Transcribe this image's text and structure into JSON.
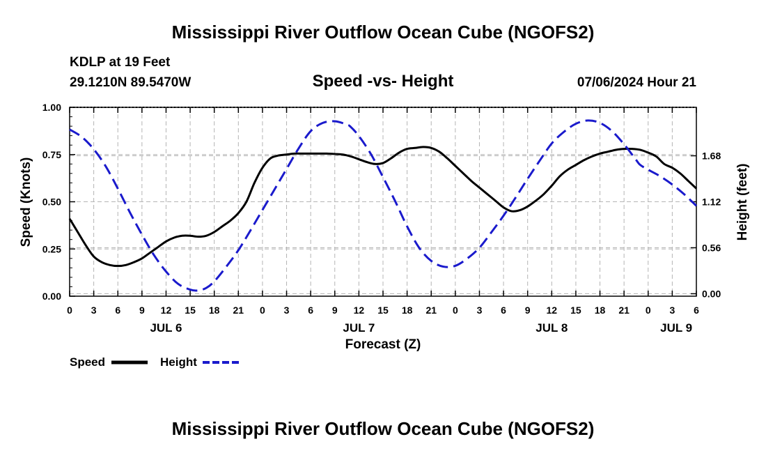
{
  "header": {
    "title": "Mississippi River Outflow Ocean Cube (NGOFS2)",
    "station": "KDLP at 19 Feet",
    "coords": "29.1210N  89.5470W",
    "subtitle": "Speed -vs- Height",
    "datetime": "07/06/2024 Hour 21",
    "footer_title": "Mississippi River Outflow Ocean Cube (NGOFS2)"
  },
  "colors": {
    "speed": "#000000",
    "height": "#1a1acc",
    "grid": "#b4b4b4"
  },
  "chart_data": {
    "type": "line",
    "title": "Speed -vs- Height",
    "xlabel": "Forecast (Z)",
    "ylabel": "Speed (Knots)",
    "y2label": "Height (feet)",
    "x_unit": "forecast hour (0 = 07/06 00Z)",
    "xlim": [
      0,
      78
    ],
    "ylim": [
      0,
      1.0
    ],
    "y2lim": [
      -0.03,
      2.27
    ],
    "x_ticks": [
      0,
      3,
      6,
      9,
      12,
      15,
      18,
      21,
      24,
      27,
      30,
      33,
      36,
      39,
      42,
      45,
      48,
      51,
      54,
      57,
      60,
      63,
      66,
      69,
      72,
      75,
      78
    ],
    "x_tick_labels": [
      "0",
      "3",
      "6",
      "9",
      "12",
      "15",
      "18",
      "21",
      "0",
      "3",
      "6",
      "9",
      "12",
      "15",
      "18",
      "21",
      "0",
      "3",
      "6",
      "9",
      "12",
      "15",
      "18",
      "21",
      "0",
      "3",
      "6"
    ],
    "day_labels": [
      {
        "label": "JUL 6",
        "x": 12
      },
      {
        "label": "JUL 7",
        "x": 36
      },
      {
        "label": "JUL 8",
        "x": 60
      },
      {
        "label": "JUL 9",
        "x": 75.5
      }
    ],
    "y_ticks": [
      0.0,
      0.25,
      0.5,
      0.75,
      1.0
    ],
    "y_tick_labels": [
      "0.00",
      "0.25",
      "0.50",
      "0.75",
      "1.00"
    ],
    "y2_ticks": [
      0.0,
      0.56,
      1.12,
      1.68
    ],
    "y2_tick_labels": [
      "0.00",
      "0.56",
      "1.12",
      "1.68"
    ],
    "series": [
      {
        "name": "Speed",
        "axis": "left",
        "style": "solid",
        "x": [
          0,
          1,
          2,
          3,
          4,
          5,
          6,
          7,
          8,
          9,
          10,
          11,
          12,
          13,
          14,
          15,
          16,
          17,
          18,
          19,
          20,
          21,
          22,
          23,
          24,
          25,
          26,
          27,
          28,
          29,
          30,
          31,
          32,
          33,
          34,
          35,
          36,
          37,
          38,
          39,
          40,
          41,
          42,
          43,
          44,
          45,
          46,
          47,
          48,
          49,
          50,
          51,
          52,
          53,
          54,
          55,
          56,
          57,
          58,
          59,
          60,
          61,
          62,
          63,
          64,
          65,
          66,
          67,
          68,
          69,
          70,
          71,
          72,
          73,
          74,
          75,
          76,
          77,
          78
        ],
        "values": [
          0.41,
          0.34,
          0.27,
          0.21,
          0.18,
          0.165,
          0.16,
          0.165,
          0.18,
          0.2,
          0.23,
          0.26,
          0.29,
          0.31,
          0.32,
          0.32,
          0.315,
          0.32,
          0.34,
          0.37,
          0.4,
          0.44,
          0.5,
          0.6,
          0.68,
          0.73,
          0.745,
          0.75,
          0.755,
          0.755,
          0.755,
          0.755,
          0.755,
          0.753,
          0.75,
          0.74,
          0.725,
          0.71,
          0.7,
          0.705,
          0.73,
          0.76,
          0.78,
          0.785,
          0.79,
          0.785,
          0.765,
          0.73,
          0.69,
          0.65,
          0.61,
          0.575,
          0.54,
          0.505,
          0.47,
          0.45,
          0.455,
          0.475,
          0.505,
          0.54,
          0.585,
          0.635,
          0.67,
          0.695,
          0.72,
          0.74,
          0.755,
          0.765,
          0.775,
          0.78,
          0.78,
          0.775,
          0.76,
          0.74,
          0.7,
          0.68,
          0.65,
          0.61,
          0.57
        ]
      },
      {
        "name": "Height",
        "axis": "right",
        "style": "dashed",
        "x": [
          0,
          1.5,
          3,
          4.5,
          6,
          7.5,
          9,
          10.5,
          12,
          13.5,
          15,
          16,
          17,
          18,
          19.5,
          21,
          22.5,
          24,
          25.5,
          27,
          28.5,
          30,
          31.5,
          33,
          34.5,
          35,
          36,
          37.5,
          39,
          40.5,
          42,
          43.5,
          45,
          46.5,
          48,
          49.5,
          51,
          52.5,
          54,
          55.5,
          57,
          58.5,
          60,
          61.5,
          63,
          64.5,
          66,
          67.5,
          69,
          70.5,
          71,
          72,
          73.5,
          75,
          76.5,
          78
        ],
        "values": [
          2.0,
          1.91,
          1.76,
          1.55,
          1.28,
          0.99,
          0.72,
          0.47,
          0.27,
          0.12,
          0.05,
          0.04,
          0.07,
          0.15,
          0.33,
          0.53,
          0.77,
          1.02,
          1.27,
          1.52,
          1.77,
          1.98,
          2.08,
          2.1,
          2.06,
          2.03,
          1.92,
          1.7,
          1.42,
          1.13,
          0.82,
          0.56,
          0.4,
          0.33,
          0.34,
          0.43,
          0.56,
          0.75,
          0.95,
          1.17,
          1.4,
          1.62,
          1.83,
          1.97,
          2.07,
          2.11,
          2.08,
          1.98,
          1.82,
          1.63,
          1.57,
          1.51,
          1.43,
          1.33,
          1.21,
          1.07
        ]
      }
    ],
    "legend": {
      "placement": "bottom-left",
      "entries": [
        "Speed",
        "Height"
      ]
    }
  }
}
